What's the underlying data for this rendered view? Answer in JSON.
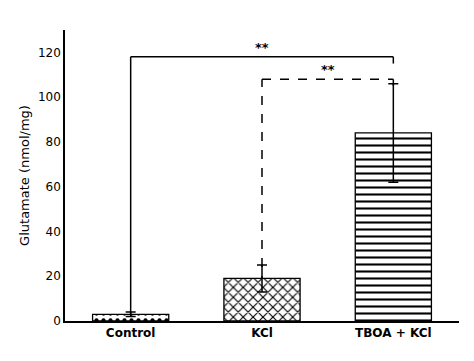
{
  "chart_data": {
    "type": "bar",
    "categories": [
      "Control",
      "KCl",
      "TBOA + KCl"
    ],
    "values": [
      3.0,
      19.0,
      84.0
    ],
    "errors": [
      1.0,
      6.0,
      22.0
    ],
    "ylabel": "Glutamate (nmol/mg)",
    "color": "#ffffff",
    "ylim": [
      0,
      130
    ],
    "yticks": [
      0,
      20,
      40,
      60,
      80,
      100,
      120
    ],
    "grid": false,
    "brackets": [
      {
        "from": "Control",
        "to": "TBOA + KCl",
        "y": 118,
        "text": "**",
        "line_style": "solid"
      },
      {
        "from": "KCl",
        "to": "TBOA + KCl",
        "y": 108,
        "text": "**",
        "line_style": "dashed"
      }
    ]
  }
}
